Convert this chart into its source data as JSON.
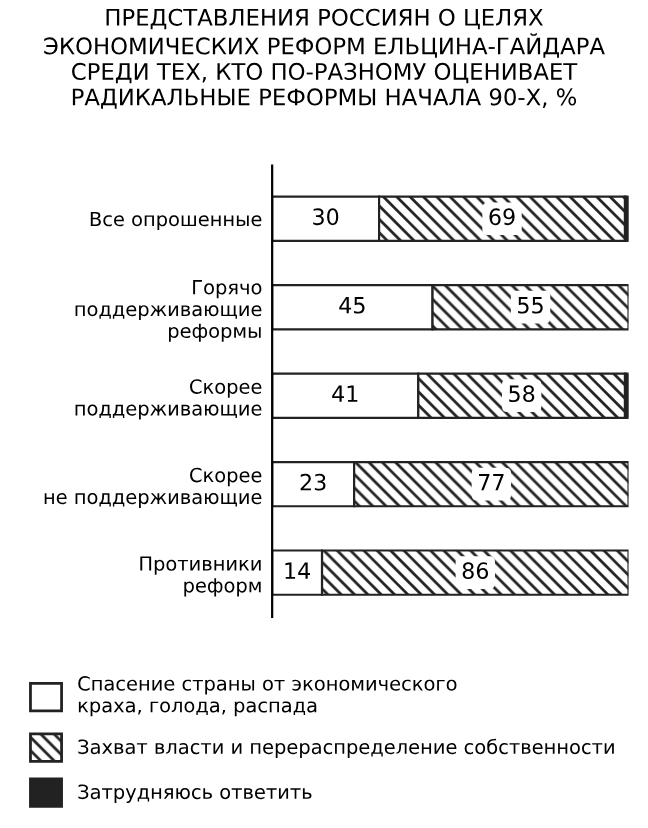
{
  "chart_data": {
    "type": "bar",
    "orientation": "horizontal",
    "stacked": true,
    "title": "ПРЕДСТАВЛЕНИЯ РОССИЯН О ЦЕЛЯХ\nЭКОНОМИЧЕСКИХ РЕФОРМ ЕЛЬЦИНА-ГАЙДАРА\nСРЕДИ ТЕХ, КТО ПО-РАЗНОМУ ОЦЕНИВАЕТ\nРАДИКАЛЬНЫЕ РЕФОРМЫ НАЧАЛА 90-Х, %",
    "categories": [
      "Все опрошенные",
      "Горячо\nподдерживающие\nреформы",
      "Скорее\nподдерживающие",
      "Скорее\nне поддерживающие",
      "Противники\nреформ"
    ],
    "series": [
      {
        "name": "Спасение страны от экономического\nкраха, голода, распада",
        "color": "#ffffff",
        "values": [
          30,
          45,
          41,
          23,
          14
        ],
        "value_labels": [
          "30",
          "45",
          "41",
          "23",
          "14"
        ]
      },
      {
        "name": "Захват власти и перераспределение собственности",
        "color": "#222222",
        "values": [
          69,
          55,
          58,
          77,
          86
        ],
        "value_labels": [
          "69",
          "55",
          "58",
          "77",
          "86"
        ]
      },
      {
        "name": "Затрудняюсь ответить",
        "color": "#222222",
        "values": [
          1,
          null,
          1,
          null,
          null
        ]
      }
    ],
    "legend": "bottom",
    "grid": false
  }
}
